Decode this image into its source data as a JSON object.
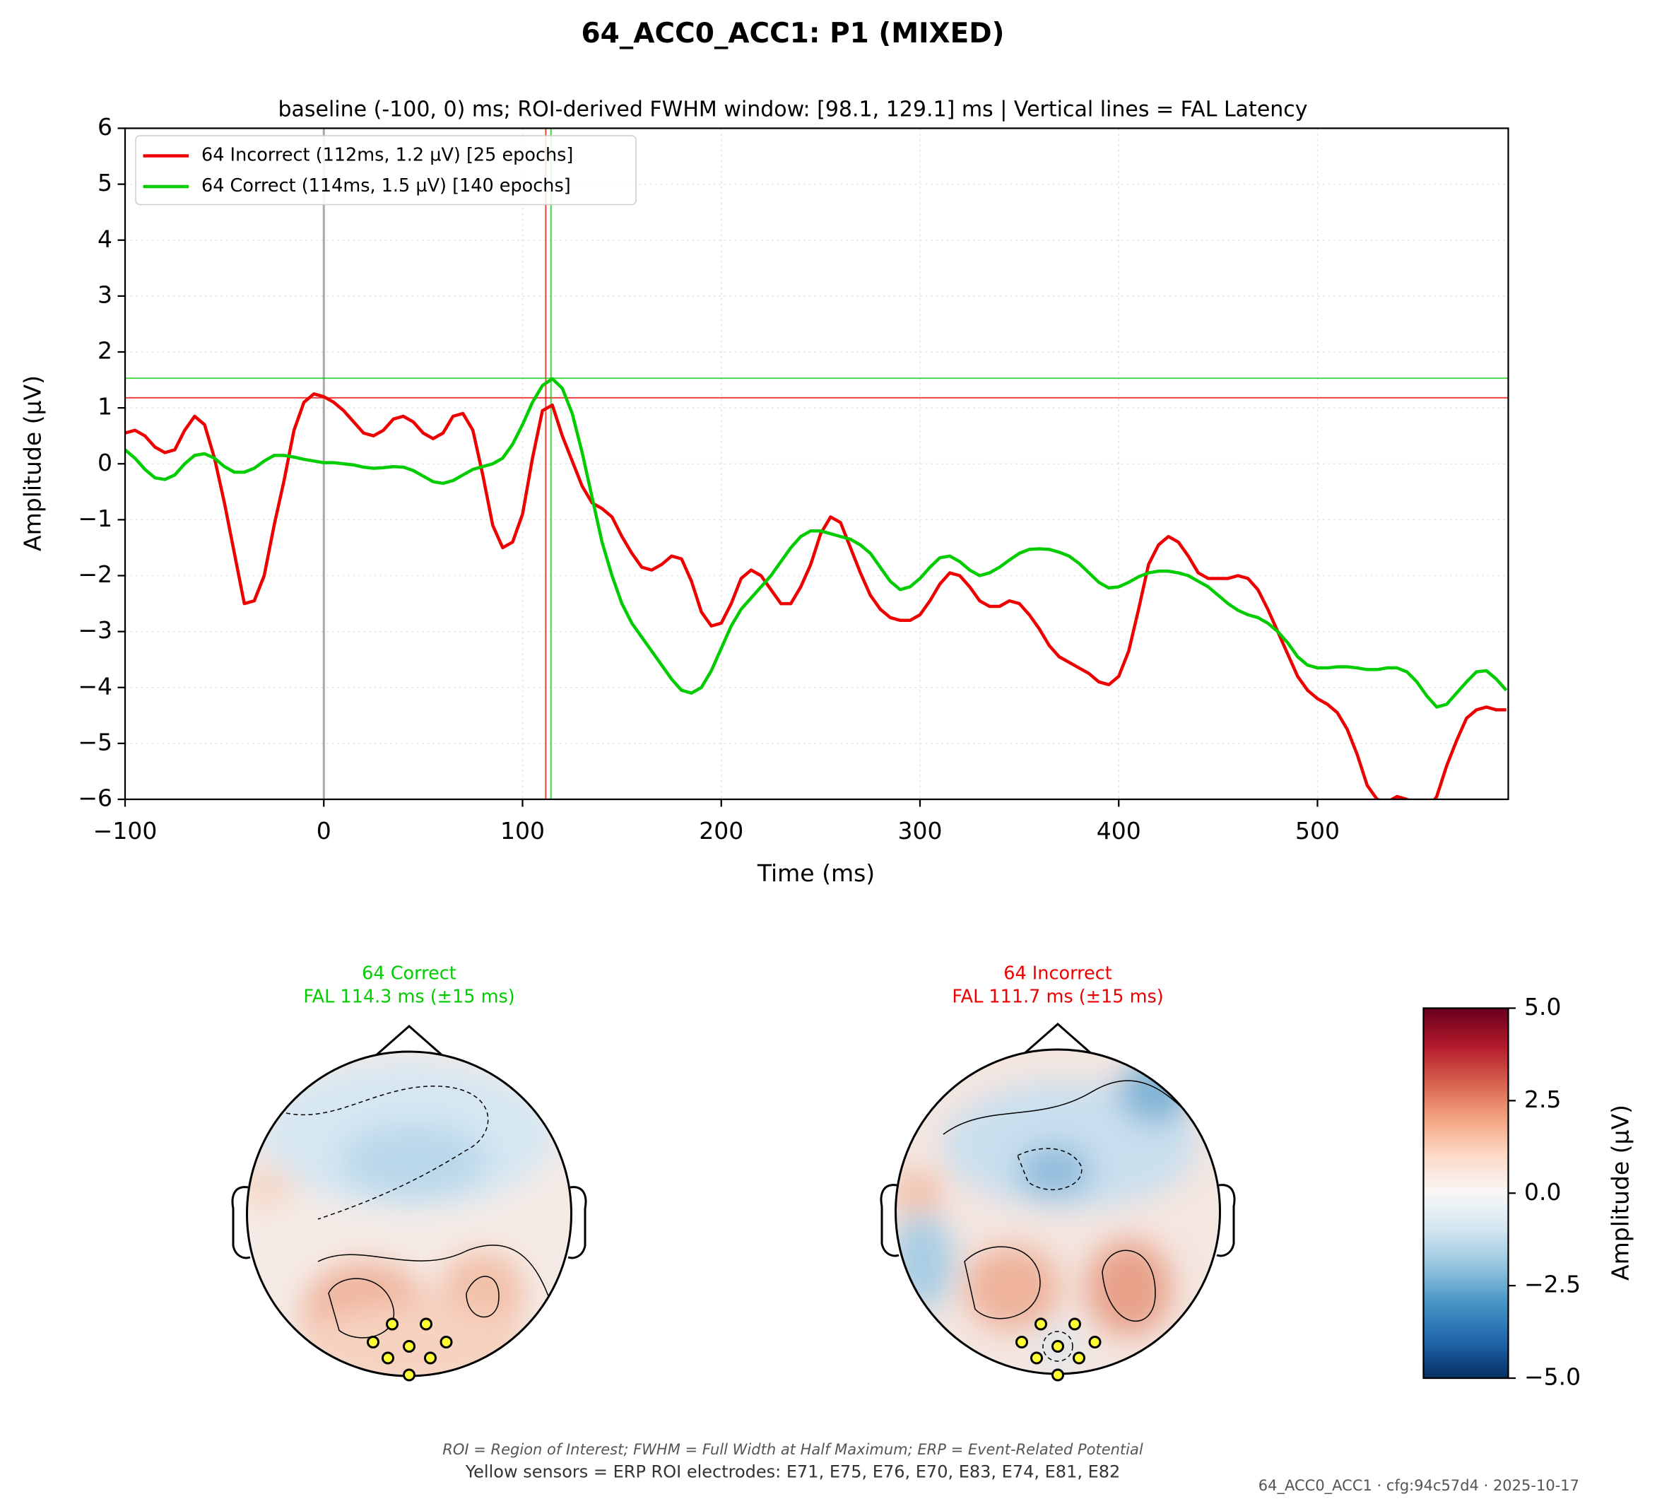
{
  "chart_data": {
    "type": "line",
    "title": "64_ACC0_ACC1: P1 (MIXED)",
    "subtitle": "baseline (-100, 0) ms; ROI-derived FWHM window: [98.1, 129.1] ms | Vertical lines = FAL Latency",
    "x_label": "Time (ms)",
    "y_label": "Amplitude (µV)",
    "x": [
      -100,
      -95,
      -90,
      -85,
      -80,
      -75,
      -70,
      -65,
      -60,
      -55,
      -50,
      -45,
      -40,
      -35,
      -30,
      -25,
      -20,
      -15,
      -10,
      -5,
      0,
      5,
      10,
      15,
      20,
      25,
      30,
      35,
      40,
      45,
      50,
      55,
      60,
      65,
      70,
      75,
      80,
      85,
      90,
      95,
      100,
      105,
      110,
      115,
      120,
      125,
      130,
      135,
      140,
      145,
      150,
      155,
      160,
      165,
      170,
      175,
      180,
      185,
      190,
      195,
      200,
      205,
      210,
      215,
      220,
      225,
      230,
      235,
      240,
      245,
      250,
      255,
      260,
      265,
      270,
      275,
      280,
      285,
      290,
      295,
      300,
      305,
      310,
      315,
      320,
      325,
      330,
      335,
      340,
      345,
      350,
      355,
      360,
      365,
      370,
      375,
      380,
      385,
      390,
      395,
      400,
      405,
      410,
      415,
      420,
      425,
      430,
      435,
      440,
      445,
      450,
      455,
      460,
      465,
      470,
      475,
      480,
      485,
      490,
      495,
      500,
      505,
      510,
      515,
      520,
      525,
      530,
      535,
      540,
      545,
      550,
      555,
      560,
      565,
      570,
      575,
      580,
      585,
      590,
      595
    ],
    "series": [
      {
        "name": "64 Incorrect (112ms, 1.2 µV) [25 epochs]",
        "color": "#ee0000",
        "latency": 111.7,
        "peak_amplitude": 1.18,
        "values": [
          0.55,
          0.6,
          0.5,
          0.3,
          0.2,
          0.25,
          0.6,
          0.85,
          0.7,
          0.1,
          -0.7,
          -1.6,
          -2.5,
          -2.45,
          -2.0,
          -1.1,
          -0.3,
          0.6,
          1.1,
          1.25,
          1.2,
          1.1,
          0.95,
          0.75,
          0.55,
          0.5,
          0.6,
          0.8,
          0.85,
          0.75,
          0.55,
          0.45,
          0.55,
          0.85,
          0.9,
          0.6,
          -0.2,
          -1.1,
          -1.5,
          -1.4,
          -0.9,
          0.1,
          0.95,
          1.05,
          0.5,
          0.05,
          -0.4,
          -0.7,
          -0.8,
          -0.95,
          -1.3,
          -1.6,
          -1.85,
          -1.9,
          -1.8,
          -1.65,
          -1.7,
          -2.1,
          -2.65,
          -2.9,
          -2.85,
          -2.5,
          -2.05,
          -1.9,
          -2.0,
          -2.25,
          -2.5,
          -2.5,
          -2.2,
          -1.8,
          -1.25,
          -0.95,
          -1.05,
          -1.5,
          -1.95,
          -2.35,
          -2.6,
          -2.75,
          -2.8,
          -2.8,
          -2.7,
          -2.45,
          -2.15,
          -1.95,
          -2.0,
          -2.2,
          -2.45,
          -2.55,
          -2.55,
          -2.45,
          -2.5,
          -2.7,
          -2.95,
          -3.25,
          -3.45,
          -3.55,
          -3.65,
          -3.75,
          -3.9,
          -3.95,
          -3.8,
          -3.35,
          -2.6,
          -1.8,
          -1.45,
          -1.3,
          -1.4,
          -1.65,
          -1.95,
          -2.05,
          -2.05,
          -2.05,
          -2.0,
          -2.05,
          -2.25,
          -2.6,
          -3.0,
          -3.4,
          -3.8,
          -4.05,
          -4.2,
          -4.3,
          -4.45,
          -4.75,
          -5.2,
          -5.75,
          -6.0,
          -6.05,
          -5.95,
          -6.0,
          -6.15,
          -6.2,
          -5.95,
          -5.4,
          -4.95,
          -4.55,
          -4.4,
          -4.35,
          -4.4,
          -4.4
        ]
      },
      {
        "name": "64 Correct (114ms, 1.5 µV) [140 epochs]",
        "color": "#00cc00",
        "latency": 114.3,
        "peak_amplitude": 1.53,
        "values": [
          0.25,
          0.1,
          -0.1,
          -0.25,
          -0.28,
          -0.2,
          0.0,
          0.15,
          0.18,
          0.1,
          -0.05,
          -0.15,
          -0.15,
          -0.08,
          0.05,
          0.15,
          0.15,
          0.12,
          0.08,
          0.05,
          0.02,
          0.02,
          0.0,
          -0.02,
          -0.06,
          -0.08,
          -0.07,
          -0.05,
          -0.06,
          -0.12,
          -0.22,
          -0.32,
          -0.35,
          -0.3,
          -0.2,
          -0.1,
          -0.05,
          0.0,
          0.1,
          0.35,
          0.7,
          1.1,
          1.4,
          1.52,
          1.35,
          0.9,
          0.2,
          -0.6,
          -1.4,
          -2.0,
          -2.5,
          -2.85,
          -3.1,
          -3.35,
          -3.6,
          -3.85,
          -4.05,
          -4.1,
          -4.0,
          -3.7,
          -3.3,
          -2.9,
          -2.6,
          -2.4,
          -2.2,
          -2.0,
          -1.75,
          -1.5,
          -1.3,
          -1.2,
          -1.2,
          -1.25,
          -1.3,
          -1.35,
          -1.45,
          -1.6,
          -1.85,
          -2.1,
          -2.25,
          -2.2,
          -2.05,
          -1.85,
          -1.68,
          -1.65,
          -1.75,
          -1.9,
          -2.0,
          -1.95,
          -1.85,
          -1.72,
          -1.6,
          -1.53,
          -1.52,
          -1.53,
          -1.58,
          -1.65,
          -1.78,
          -1.95,
          -2.12,
          -2.22,
          -2.2,
          -2.12,
          -2.02,
          -1.95,
          -1.92,
          -1.92,
          -1.95,
          -2.0,
          -2.1,
          -2.2,
          -2.35,
          -2.5,
          -2.62,
          -2.7,
          -2.75,
          -2.85,
          -3.0,
          -3.2,
          -3.45,
          -3.6,
          -3.65,
          -3.65,
          -3.63,
          -3.63,
          -3.65,
          -3.68,
          -3.68,
          -3.65,
          -3.65,
          -3.72,
          -3.9,
          -4.15,
          -4.35,
          -4.3,
          -4.1,
          -3.9,
          -3.72,
          -3.7,
          -3.85,
          -4.05
        ]
      }
    ],
    "event_marker": 0,
    "xlim": [
      -100,
      596
    ],
    "ylim": [
      -6,
      6
    ],
    "xticks": [
      {
        "value": -100,
        "label": "−100"
      },
      0,
      100,
      200,
      300,
      400,
      500
    ],
    "yticks": [
      {
        "value": -6,
        "label": "−6"
      },
      {
        "value": -5,
        "label": "−5"
      },
      {
        "value": -4,
        "label": "−4"
      },
      {
        "value": -3,
        "label": "−3"
      },
      {
        "value": -2,
        "label": "−2"
      },
      {
        "value": -1,
        "label": "−1"
      },
      0,
      1,
      2,
      3,
      4,
      5,
      6
    ],
    "grid": true,
    "legend": "upper left"
  },
  "topomaps": [
    {
      "title": "64 Correct",
      "subtitle": "FAL 114.3 ms (±15 ms)",
      "color": "#00cc00"
    },
    {
      "title": "64 Incorrect",
      "subtitle": "FAL 111.7 ms (±15 ms)",
      "color": "#ee0000"
    }
  ],
  "colorbar": {
    "label": "Amplitude (µV)",
    "ylim": [
      -5,
      5
    ],
    "yticks": [
      {
        "value": -5,
        "label": "−5.0"
      },
      {
        "value": -2.5,
        "label": "−2.5"
      },
      {
        "value": 0,
        "label": "0.0"
      },
      2.5,
      {
        "value": 5,
        "label": "5.0"
      }
    ]
  },
  "footnote": "ROI = Region of Interest; FWHM = Full Width at Half Maximum; ERP = Event-Related Potential",
  "caption": "Yellow sensors = ERP ROI electrodes: E71, E75, E76, E70, E83, E74, E81, E82",
  "stamp": "64_ACC0_ACC1 · cfg:94c57d4 · 2025-10-17"
}
